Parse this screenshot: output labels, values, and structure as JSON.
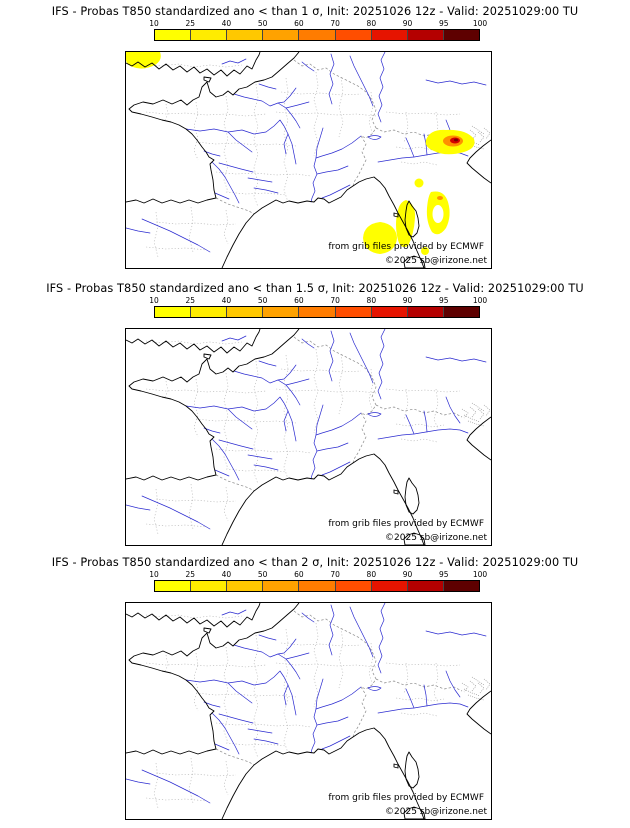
{
  "panels": [
    {
      "title": "IFS - Probas T850  standardized ano < than 1 σ, Init: 20251026 12z - Valid: 20251029:00 TU",
      "show_anomalies": true
    },
    {
      "title": "IFS - Probas T850  standardized ano < than 1.5 σ, Init: 20251026 12z - Valid: 20251029:00 TU",
      "show_anomalies": false
    },
    {
      "title": "IFS - Probas T850  standardized ano < than 2 σ, Init: 20251026 12z - Valid: 20251029:00 TU",
      "show_anomalies": false
    }
  ],
  "colorbar": {
    "ticks": [
      "10",
      "25",
      "40",
      "50",
      "60",
      "70",
      "80",
      "90",
      "95",
      "100"
    ],
    "colors": [
      "#ffff00",
      "#ffec00",
      "#ffc800",
      "#ffa200",
      "#ff7c00",
      "#ff4e00",
      "#e61400",
      "#b40000",
      "#5e0000"
    ]
  },
  "map": {
    "attribution": "from grib files provided by ECMWF",
    "copyright": "©2025 sb@irizone.net"
  }
}
